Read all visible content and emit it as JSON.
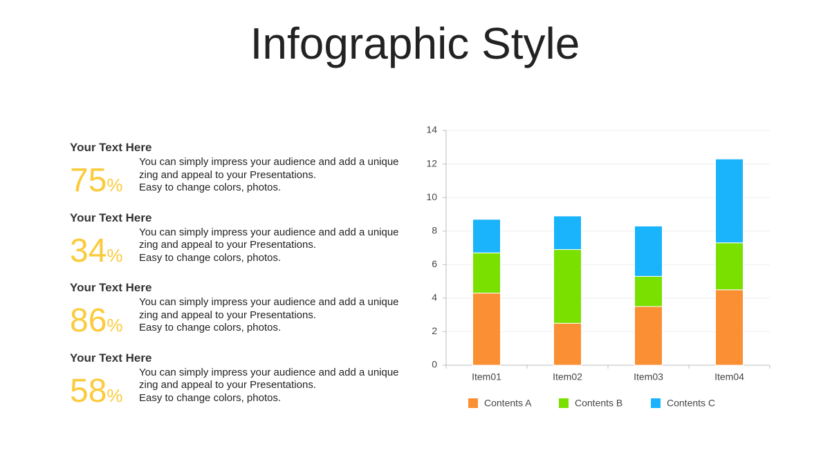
{
  "title": "Infographic Style",
  "items": [
    {
      "heading": "Your Text Here",
      "value": 75,
      "unit": "%",
      "lines": [
        "You can simply impress your audience and add a unique",
        "zing and appeal to your Presentations.",
        "Easy to change colors, photos."
      ]
    },
    {
      "heading": "Your Text Here",
      "value": 34,
      "unit": "%",
      "lines": [
        "You can simply impress your audience and add a unique",
        "zing and appeal to your Presentations.",
        "Easy to change colors, photos."
      ]
    },
    {
      "heading": "Your Text Here",
      "value": 86,
      "unit": "%",
      "lines": [
        "You can simply impress your audience and add a unique",
        "zing and appeal to your Presentations.",
        "Easy to change colors, photos."
      ]
    },
    {
      "heading": "Your Text Here",
      "value": 58,
      "unit": "%",
      "lines": [
        "You can simply impress your audience and add a unique",
        "zing and appeal to your Presentations.",
        "Easy to change colors, photos."
      ]
    }
  ],
  "chart_data": {
    "type": "stacked_bar",
    "categories": [
      "Item01",
      "Item02",
      "Item03",
      "Item04"
    ],
    "series": [
      {
        "name": "Contents A",
        "color": "#fb8f33",
        "values": [
          4.3,
          2.5,
          3.5,
          4.5
        ]
      },
      {
        "name": "Contents B",
        "color": "#7ae000",
        "values": [
          2.4,
          4.4,
          1.8,
          2.8
        ]
      },
      {
        "name": "Contents C",
        "color": "#19b4fb",
        "values": [
          2.0,
          2.0,
          3.0,
          5.0
        ]
      }
    ],
    "ylim": [
      0,
      14
    ],
    "yticks": [
      0,
      2,
      4,
      6,
      8,
      10,
      12,
      14
    ],
    "grid": true,
    "legend": "bottom"
  }
}
